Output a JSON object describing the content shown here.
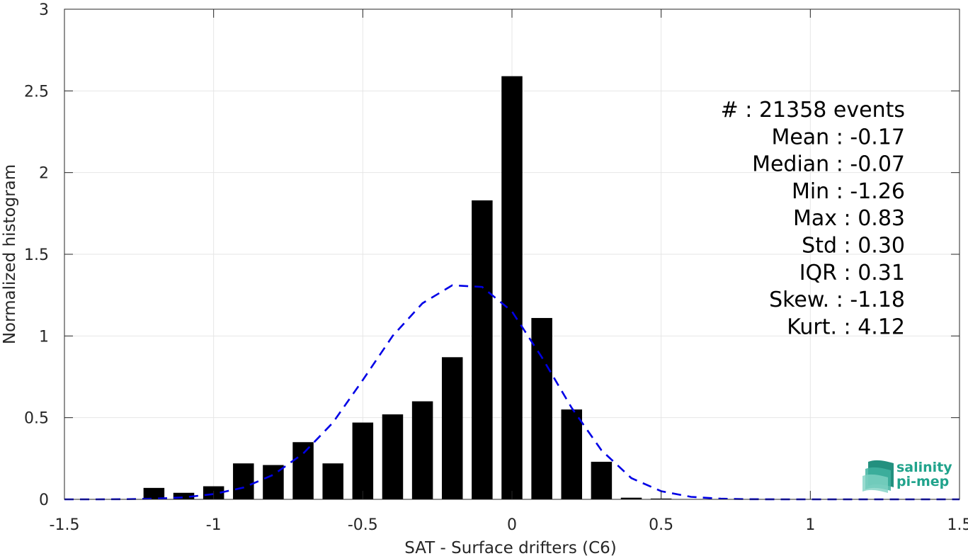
{
  "chart_data": {
    "type": "bar",
    "xlabel": "SAT - Surface drifters (C6)",
    "ylabel": "Normalized histogram",
    "xlim": [
      -1.5,
      1.5
    ],
    "ylim": [
      0,
      3
    ],
    "xticks": [
      -1.5,
      -1,
      -0.5,
      0,
      0.5,
      1,
      1.5
    ],
    "xtick_labels": [
      "-1.5",
      "-1",
      "-0.5",
      "0",
      "0.5",
      "1",
      "1.5"
    ],
    "yticks": [
      0,
      0.5,
      1,
      1.5,
      2,
      2.5,
      3
    ],
    "ytick_labels": [
      "0",
      "0.5",
      "1",
      "1.5",
      "2",
      "2.5",
      "3"
    ],
    "grid": true,
    "bar_width": 0.07,
    "bar_color": "#000000",
    "bars": {
      "x": [
        -1.2,
        -1.1,
        -1.0,
        -0.9,
        -0.8,
        -0.7,
        -0.6,
        -0.5,
        -0.4,
        -0.3,
        -0.2,
        -0.1,
        0.0,
        0.1,
        0.2,
        0.3,
        0.4,
        0.5,
        0.6
      ],
      "values": [
        0.07,
        0.04,
        0.08,
        0.22,
        0.21,
        0.35,
        0.22,
        0.47,
        0.52,
        0.6,
        0.87,
        1.83,
        2.59,
        1.11,
        0.55,
        0.23,
        0.01,
        0.005,
        0.002
      ]
    },
    "fit_curve": {
      "style": "dashed",
      "color": "#0000e6",
      "x": [
        -1.5,
        -1.4,
        -1.3,
        -1.2,
        -1.1,
        -1.0,
        -0.9,
        -0.8,
        -0.7,
        -0.6,
        -0.5,
        -0.4,
        -0.3,
        -0.2,
        -0.1,
        0.0,
        0.1,
        0.2,
        0.3,
        0.4,
        0.5,
        0.6,
        0.7,
        0.8,
        0.9,
        1.0,
        1.1,
        1.2,
        1.3,
        1.4,
        1.5
      ],
      "y": [
        0.0,
        0.0,
        0.001,
        0.004,
        0.012,
        0.032,
        0.072,
        0.15,
        0.28,
        0.47,
        0.73,
        1.0,
        1.2,
        1.31,
        1.3,
        1.15,
        0.87,
        0.56,
        0.3,
        0.13,
        0.05,
        0.015,
        0.004,
        0.001,
        0.0,
        0.0,
        0.0,
        0.0,
        0.0,
        0.0,
        0.0
      ]
    },
    "annotations": [
      "#  : 21358 events",
      "Mean : -0.17",
      "Median : -0.07",
      "Min : -1.26",
      "Max : 0.83",
      "Std : 0.30",
      "IQR : 0.31",
      "Skew. : -1.18",
      "Kurt. : 4.12"
    ]
  },
  "logo": {
    "line1": "salinity",
    "line2": "pi-mep"
  }
}
